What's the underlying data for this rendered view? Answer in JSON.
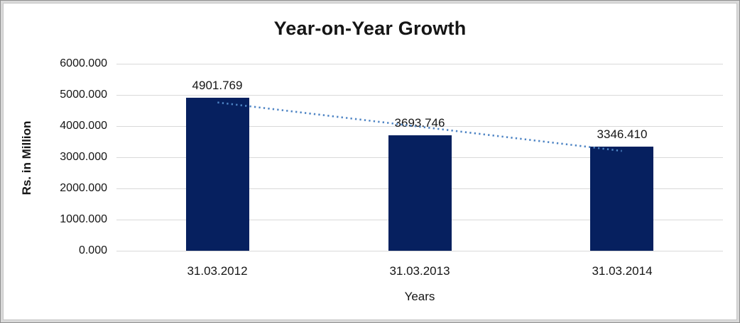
{
  "chart_data": {
    "type": "bar",
    "title": "Year-on-Year Growth",
    "categories": [
      "31.03.2012",
      "31.03.2013",
      "31.03.2014"
    ],
    "values": [
      4901.769,
      3693.746,
      3346.41
    ],
    "data_labels": [
      "4901.769",
      "3693.746",
      "3346.410"
    ],
    "xlabel": "Years",
    "ylabel": "Rs. in Million",
    "ylim": [
      0,
      6000
    ],
    "ytick_step": 1000,
    "ytick_labels": [
      "0.000",
      "1000.000",
      "2000.000",
      "3000.000",
      "4000.000",
      "5000.000",
      "6000.000"
    ],
    "grid": true,
    "legend": "none",
    "bar_color": "#06205f",
    "gridline_color": "#d9d9d9",
    "trendline": {
      "type": "linear",
      "style": "dotted",
      "color": "#4e84c4"
    }
  }
}
